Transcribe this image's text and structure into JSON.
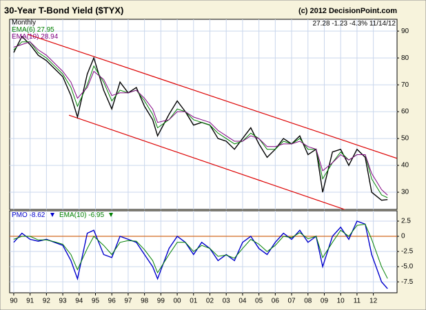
{
  "chart_data": [
    {
      "type": "line",
      "title": "30-Year T-Bond Yield ($TYX)",
      "source": "(c) 2012 DecisionPoint.com",
      "period": "Monthly",
      "change": -1.23,
      "change_pct": {
        "value": -4.3,
        "label": "-4.3%"
      },
      "date": "11/14/12",
      "x": [
        1990,
        1990.5,
        1991,
        1991.5,
        1992,
        1992.5,
        1993,
        1993.5,
        1993.9,
        1994.5,
        1994.9,
        1995.5,
        1996,
        1996.5,
        1997,
        1997.5,
        1998,
        1998.5,
        1998.8,
        1999.5,
        2000,
        2000.5,
        2001,
        2001.5,
        2002,
        2002.5,
        2003,
        2003.5,
        2004,
        2004.5,
        2005,
        2005.5,
        2006,
        2006.5,
        2007,
        2007.5,
        2008,
        2008.5,
        2008.9,
        2009.5,
        2010,
        2010.5,
        2011,
        2011.5,
        2011.9,
        2012.5,
        2012.87
      ],
      "series": [
        {
          "name": "$TYX",
          "color": "#000000",
          "values": [
            82,
            88,
            85,
            81,
            79,
            76,
            73,
            66,
            58,
            74,
            80,
            68,
            61,
            71,
            67,
            69,
            62,
            57,
            51,
            59,
            64,
            60,
            55,
            56,
            55,
            50,
            49,
            46,
            50,
            54,
            48,
            43,
            46,
            50,
            48,
            51,
            44,
            46,
            30,
            45,
            46,
            40,
            46,
            43,
            30,
            27,
            27.28
          ]
        },
        {
          "name": "EMA(6)",
          "color": "#008000",
          "values": [
            83,
            86,
            86,
            82,
            80,
            77,
            74,
            69,
            62,
            70,
            77,
            71,
            64,
            68,
            67,
            68,
            64,
            59,
            54,
            57,
            61,
            60,
            57,
            56,
            55,
            52,
            50,
            48,
            49,
            52,
            50,
            46,
            46,
            49,
            48,
            50,
            46,
            46,
            35,
            41,
            45,
            42,
            44,
            44,
            35,
            29,
            27.95
          ]
        },
        {
          "name": "EMA(10)",
          "color": "#800080",
          "values": [
            84,
            85,
            86,
            83,
            81,
            78,
            75,
            71,
            65,
            69,
            75,
            72,
            66,
            67,
            67,
            68,
            65,
            61,
            56,
            57,
            60,
            60,
            58,
            57,
            56,
            53,
            51,
            49,
            49,
            51,
            50,
            47,
            47,
            48,
            48,
            49,
            47,
            46,
            38,
            41,
            44,
            42,
            44,
            44,
            37,
            31,
            28.94
          ]
        }
      ],
      "trendlines": [
        {
          "x": [
            1990.85,
            2013.45
          ],
          "y": [
            88.8,
            42.6
          ],
          "color": "#dd0000"
        },
        {
          "x": [
            1993.38,
            2013.45
          ],
          "y": [
            58.7,
            16.9
          ],
          "color": "#dd0000"
        }
      ],
      "xlim": [
        1989.75,
        2013.45
      ],
      "ylim": [
        23.6,
        94.4
      ],
      "yticks": [
        30,
        40,
        50,
        60,
        70,
        80,
        90
      ],
      "grid": true
    },
    {
      "type": "line",
      "x": [
        1990,
        1990.5,
        1991,
        1991.5,
        1992,
        1992.5,
        1993,
        1993.5,
        1993.9,
        1994.5,
        1994.9,
        1995.5,
        1996,
        1996.5,
        1997,
        1997.5,
        1998,
        1998.5,
        1998.8,
        1999.5,
        2000,
        2000.5,
        2001,
        2001.5,
        2002,
        2002.5,
        2003,
        2003.5,
        2004,
        2004.5,
        2005,
        2005.5,
        2006,
        2006.5,
        2007,
        2007.5,
        2008,
        2008.5,
        2008.9,
        2009.5,
        2010,
        2010.5,
        2011,
        2011.5,
        2011.9,
        2012.5,
        2012.87
      ],
      "series": [
        {
          "name": "PMO",
          "color": "#0000cc",
          "values": [
            -1,
            0.5,
            -0.5,
            -0.8,
            -0.5,
            -1,
            -1.5,
            -4,
            -7,
            0.5,
            1,
            -3,
            -3.5,
            0,
            -0.5,
            -1,
            -3,
            -5,
            -7,
            -2,
            0,
            -1,
            -3,
            -1,
            -2,
            -4,
            -3,
            -4,
            -1,
            0,
            -2,
            -3,
            -1,
            0.5,
            -0.5,
            1,
            -1,
            0,
            -5,
            0,
            1.5,
            -0.5,
            2.5,
            2,
            -3,
            -7.5,
            -8.62
          ]
        },
        {
          "name": "EMA(10)",
          "color": "#008000",
          "values": [
            -0.5,
            0,
            0,
            -0.6,
            -0.6,
            -0.9,
            -1.3,
            -3,
            -5.5,
            -2,
            0,
            -1.5,
            -3,
            -1,
            -0.7,
            -0.8,
            -2.2,
            -4,
            -6,
            -3,
            -1,
            -1,
            -2.5,
            -1.5,
            -2,
            -3.3,
            -3.1,
            -3.6,
            -2,
            -0.5,
            -1.3,
            -2.5,
            -1.5,
            0,
            -0.2,
            0.6,
            -0.4,
            0,
            -3.5,
            -1,
            1,
            0,
            1.8,
            2,
            -0.5,
            -5,
            -6.95
          ]
        }
      ],
      "hline": {
        "value": 0,
        "color": "#d2691e"
      },
      "xlim": [
        1989.75,
        2013.45
      ],
      "ylim": [
        -9.3,
        4.2
      ],
      "yticks": [
        2.5,
        0,
        -2.5,
        {
          "value": -5,
          "label": "-5.0"
        },
        -7.5
      ],
      "xticks": [
        {
          "value": 1990,
          "label": "90"
        },
        {
          "value": 1991,
          "label": "91"
        },
        {
          "value": 1992,
          "label": "92"
        },
        {
          "value": 1993,
          "label": "93"
        },
        {
          "value": 1994,
          "label": "94"
        },
        {
          "value": 1995,
          "label": "95"
        },
        {
          "value": 1996,
          "label": "96"
        },
        {
          "value": 1997,
          "label": "97"
        },
        {
          "value": 1998,
          "label": "98"
        },
        {
          "value": 1999,
          "label": "99"
        },
        {
          "value": 2000,
          "label": "00"
        },
        {
          "value": 2001,
          "label": "01"
        },
        {
          "value": 2002,
          "label": "02"
        },
        {
          "value": 2003,
          "label": "03"
        },
        {
          "value": 2004,
          "label": "04"
        },
        {
          "value": 2005,
          "label": "05"
        },
        {
          "value": 2006,
          "label": "06"
        },
        {
          "value": 2007,
          "label": "07"
        },
        {
          "value": 2008,
          "label": "08"
        },
        {
          "value": 2009,
          "label": "09"
        },
        {
          "value": 2010,
          "label": "10"
        },
        {
          "value": 2011,
          "label": "11"
        },
        {
          "value": 2012,
          "label": "12"
        }
      ],
      "grid": true
    }
  ]
}
